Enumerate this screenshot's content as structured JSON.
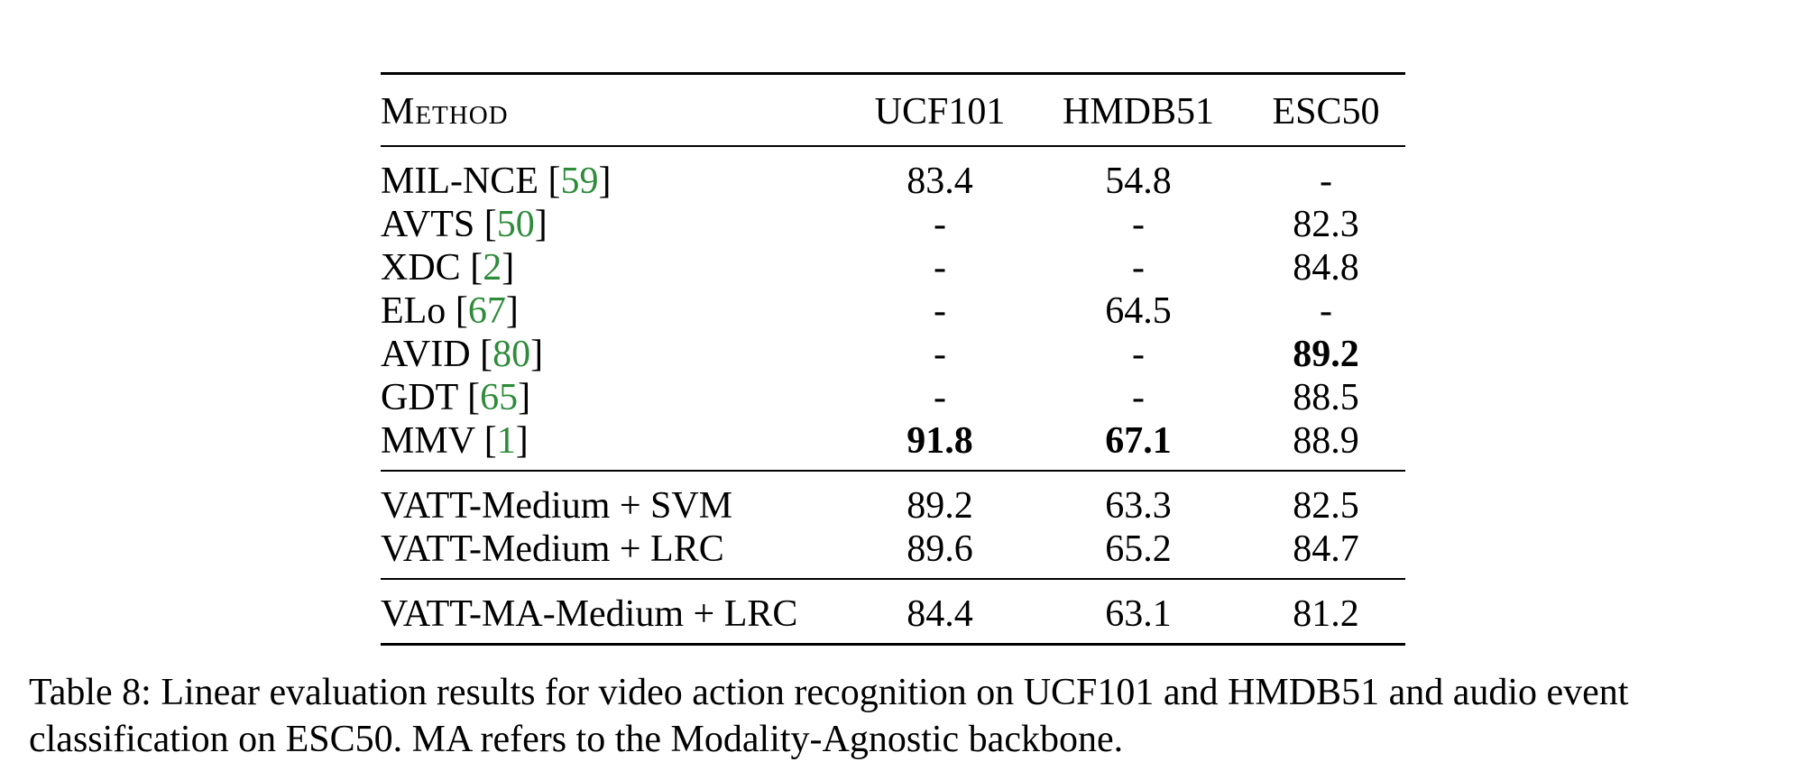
{
  "table": {
    "headers": {
      "method": "Method",
      "ucf101": "UCF101",
      "hmdb51": "HMDB51",
      "esc50": "ESC50"
    },
    "groups": [
      {
        "rows": [
          {
            "method": "MIL-NCE",
            "cite": "59",
            "ucf101": "83.4",
            "hmdb51": "54.8",
            "esc50": "-",
            "bold": []
          },
          {
            "method": "AVTS",
            "cite": "50",
            "ucf101": "-",
            "hmdb51": "-",
            "esc50": "82.3",
            "bold": []
          },
          {
            "method": "XDC",
            "cite": "2",
            "ucf101": "-",
            "hmdb51": "-",
            "esc50": "84.8",
            "bold": []
          },
          {
            "method": "ELo",
            "cite": "67",
            "ucf101": "-",
            "hmdb51": "64.5",
            "esc50": "-",
            "bold": []
          },
          {
            "method": "AVID",
            "cite": "80",
            "ucf101": "-",
            "hmdb51": "-",
            "esc50": "89.2",
            "bold": [
              "esc50"
            ]
          },
          {
            "method": "GDT",
            "cite": "65",
            "ucf101": "-",
            "hmdb51": "-",
            "esc50": "88.5",
            "bold": []
          },
          {
            "method": "MMV",
            "cite": "1",
            "ucf101": "91.8",
            "hmdb51": "67.1",
            "esc50": "88.9",
            "bold": [
              "ucf101",
              "hmdb51"
            ]
          }
        ]
      },
      {
        "rows": [
          {
            "method": "VATT-Medium + SVM",
            "cite": "",
            "ucf101": "89.2",
            "hmdb51": "63.3",
            "esc50": "82.5",
            "bold": []
          },
          {
            "method": "VATT-Medium + LRC",
            "cite": "",
            "ucf101": "89.6",
            "hmdb51": "65.2",
            "esc50": "84.7",
            "bold": []
          }
        ]
      },
      {
        "rows": [
          {
            "method": "VATT-MA-Medium + LRC",
            "cite": "",
            "ucf101": "84.4",
            "hmdb51": "63.1",
            "esc50": "81.2",
            "bold": []
          }
        ]
      }
    ]
  },
  "caption": "Table 8: Linear evaluation results for video action recognition on UCF101 and HMDB51 and audio event classification on ESC50. MA refers to the Modality-Agnostic backbone.",
  "colors": {
    "citation": "#2e8b3a",
    "text": "#000000",
    "rule": "#000000"
  }
}
